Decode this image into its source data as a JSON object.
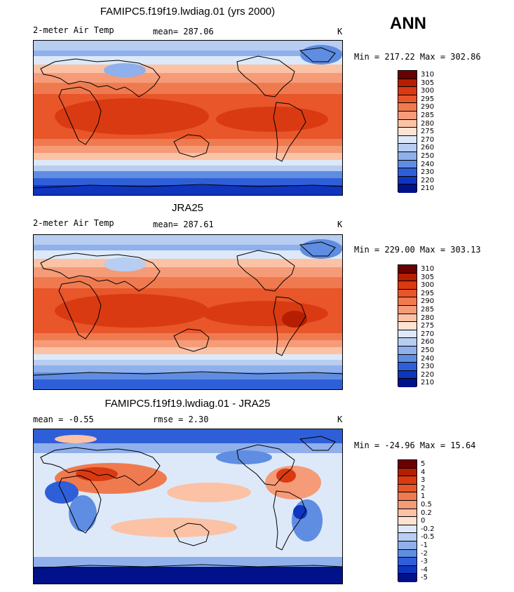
{
  "season": "ANN",
  "panels": [
    {
      "title": "FAMIPC5.f19f19.lwdiag.01 (yrs 2000)",
      "left_label": "2-meter Air Temp",
      "stat_label": "mean= 287.06",
      "units": "K",
      "minmax": "Min = 217.22 Max = 302.86",
      "colorbar": {
        "labels": [
          "310",
          "305",
          "300",
          "295",
          "290",
          "285",
          "280",
          "275",
          "270",
          "260",
          "250",
          "240",
          "230",
          "220",
          "210"
        ],
        "colors": [
          "#6b0000",
          "#b51e00",
          "#d93a12",
          "#e8562a",
          "#f07a4f",
          "#f59b78",
          "#fbc2a6",
          "#fde3d3",
          "#dde9f8",
          "#b7cdf1",
          "#8fb0ea",
          "#5f8de2",
          "#2f5fd8",
          "#0f35bf",
          "#00118a"
        ]
      }
    },
    {
      "title": "JRA25",
      "left_label": "2-meter Air Temp",
      "stat_label": "mean= 287.61",
      "units": "K",
      "minmax": "Min = 229.00 Max = 303.13",
      "colorbar": {
        "labels": [
          "310",
          "305",
          "300",
          "295",
          "290",
          "285",
          "280",
          "275",
          "270",
          "260",
          "250",
          "240",
          "230",
          "220",
          "210"
        ],
        "colors": [
          "#6b0000",
          "#b51e00",
          "#d93a12",
          "#e8562a",
          "#f07a4f",
          "#f59b78",
          "#fbc2a6",
          "#fde3d3",
          "#dde9f8",
          "#b7cdf1",
          "#8fb0ea",
          "#5f8de2",
          "#2f5fd8",
          "#0f35bf",
          "#00118a"
        ]
      }
    },
    {
      "title": "FAMIPC5.f19f19.lwdiag.01 - JRA25",
      "left_label": "mean =  -0.55",
      "stat_label": "rmse =   2.30",
      "units": "K",
      "minmax": "Min = -24.96 Max =  15.64",
      "colorbar": {
        "labels": [
          "5",
          "4",
          "3",
          "2",
          "1",
          "0.5",
          "0.2",
          "0",
          "-0.2",
          "-0.5",
          "-1",
          "-2",
          "-3",
          "-4",
          "-5"
        ],
        "colors": [
          "#6b0000",
          "#b51e00",
          "#d93a12",
          "#e8562a",
          "#f07a4f",
          "#f59b78",
          "#fbc2a6",
          "#fde3d3",
          "#dde9f8",
          "#b7cdf1",
          "#8fb0ea",
          "#5f8de2",
          "#2f5fd8",
          "#0f35bf",
          "#00118a"
        ]
      }
    }
  ]
}
